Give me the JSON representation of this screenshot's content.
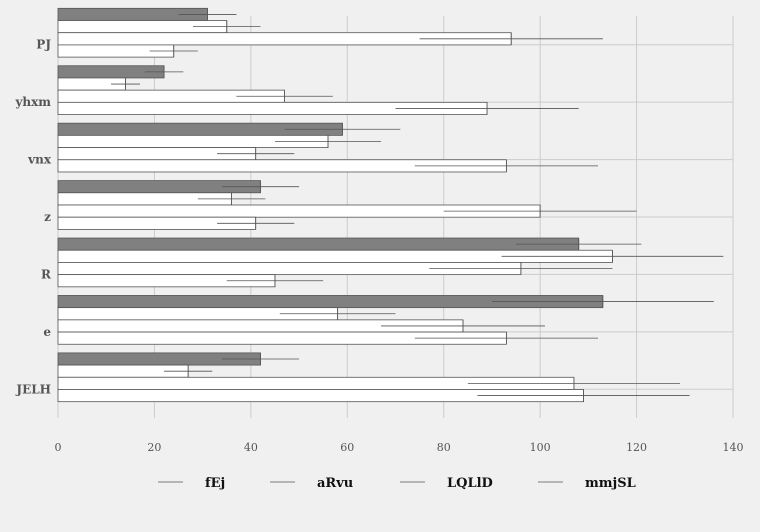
{
  "chart_data": {
    "type": "bar",
    "orientation": "horizontal",
    "categories": [
      "PJ",
      "yhxm",
      "vnx",
      "z",
      "R",
      "e",
      "JELH"
    ],
    "series": [
      {
        "name": "fEj",
        "values": [
          31,
          22,
          59,
          42,
          108,
          113,
          42
        ],
        "errors": [
          6,
          4,
          12,
          8,
          13,
          23,
          8
        ],
        "color": "#808080"
      },
      {
        "name": "aRvu",
        "values": [
          35,
          14,
          56,
          36,
          115,
          58,
          27
        ],
        "errors": [
          7,
          3,
          11,
          7,
          23,
          12,
          5
        ],
        "color": "#ffffff"
      },
      {
        "name": "LQLlD",
        "values": [
          94,
          47,
          41,
          100,
          96,
          84,
          107
        ],
        "errors": [
          19,
          10,
          8,
          20,
          19,
          17,
          22
        ],
        "color": "#ffffff"
      },
      {
        "name": "mmjSL",
        "values": [
          24,
          89,
          93,
          41,
          45,
          93,
          109
        ],
        "errors": [
          5,
          19,
          19,
          8,
          10,
          19,
          22
        ],
        "color": "#ffffff"
      }
    ],
    "xlim": [
      0,
      140
    ],
    "xticks": [
      0,
      20,
      40,
      60,
      80,
      100,
      120,
      140
    ],
    "grid": true,
    "legend_position": "bottom"
  }
}
